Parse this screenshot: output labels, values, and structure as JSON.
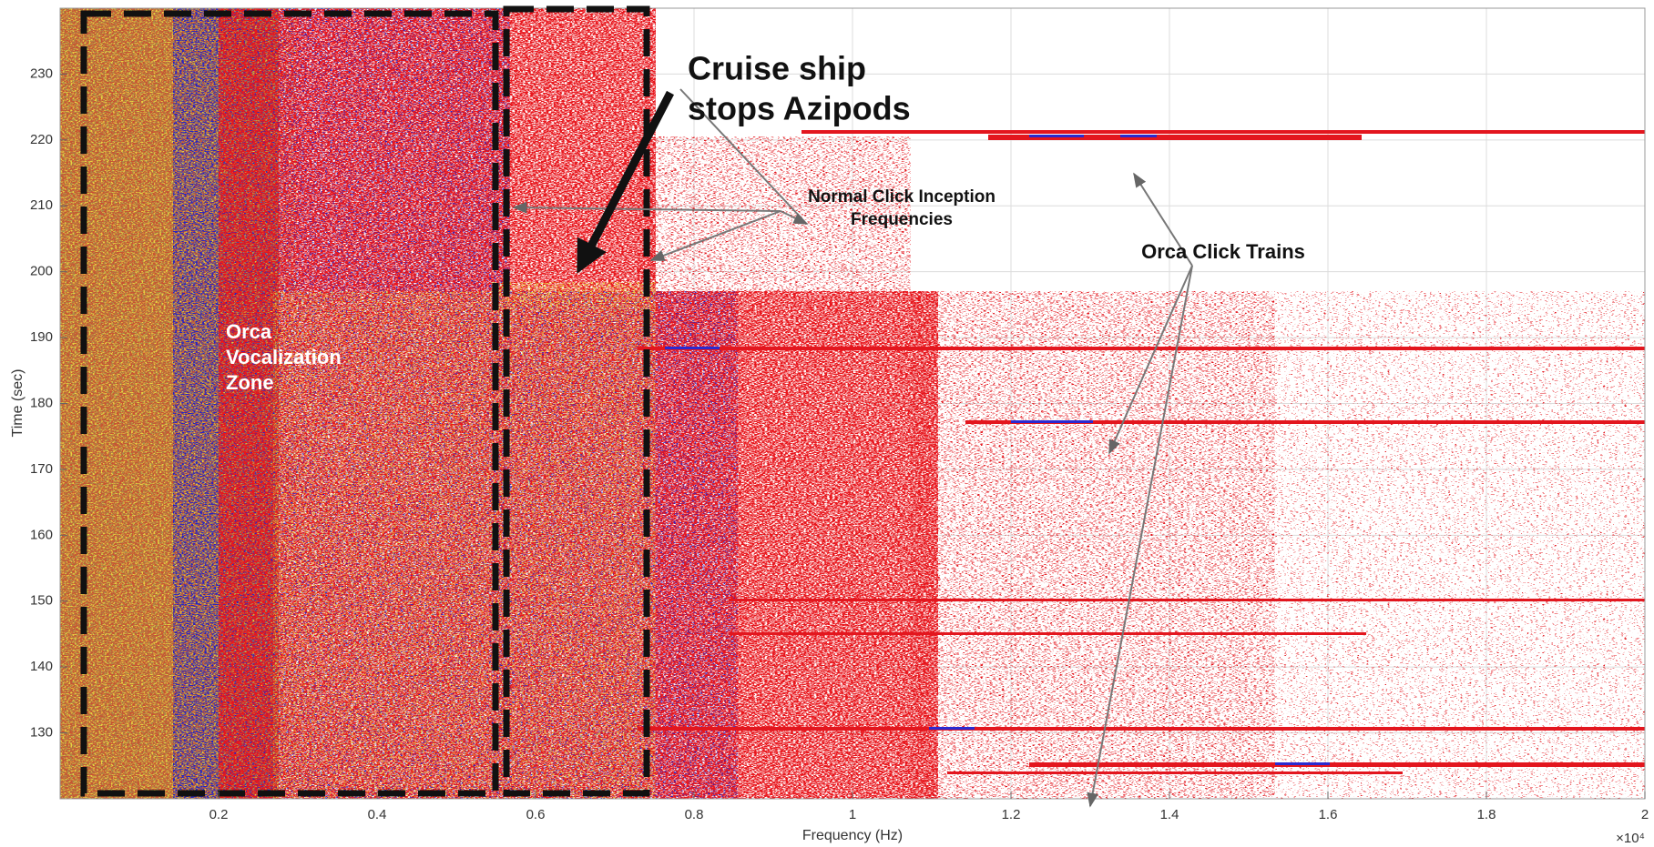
{
  "chart_data": {
    "type": "spectrogram",
    "x_label": "Frequency (Hz)",
    "y_label": "Time (sec)",
    "x_multiplier": "×10⁴",
    "xlim": [
      0,
      2
    ],
    "xticks": [
      0.2,
      0.4,
      0.6,
      0.8,
      1,
      1.2,
      1.4,
      1.6,
      1.8,
      2
    ],
    "ylim": [
      120,
      240
    ],
    "yticks": [
      130,
      140,
      150,
      160,
      170,
      180,
      190,
      200,
      210,
      220,
      230
    ],
    "grid": true,
    "annotations": [
      {
        "lines": [
          "Cruise ship",
          "stops Azipods"
        ]
      },
      {
        "lines": [
          "Normal Click Inception",
          "Frequencies"
        ]
      },
      {
        "lines": [
          "Orca Click Trains"
        ]
      },
      {
        "lines": [
          "Orca",
          "Vocalization",
          "Zone"
        ]
      }
    ]
  }
}
